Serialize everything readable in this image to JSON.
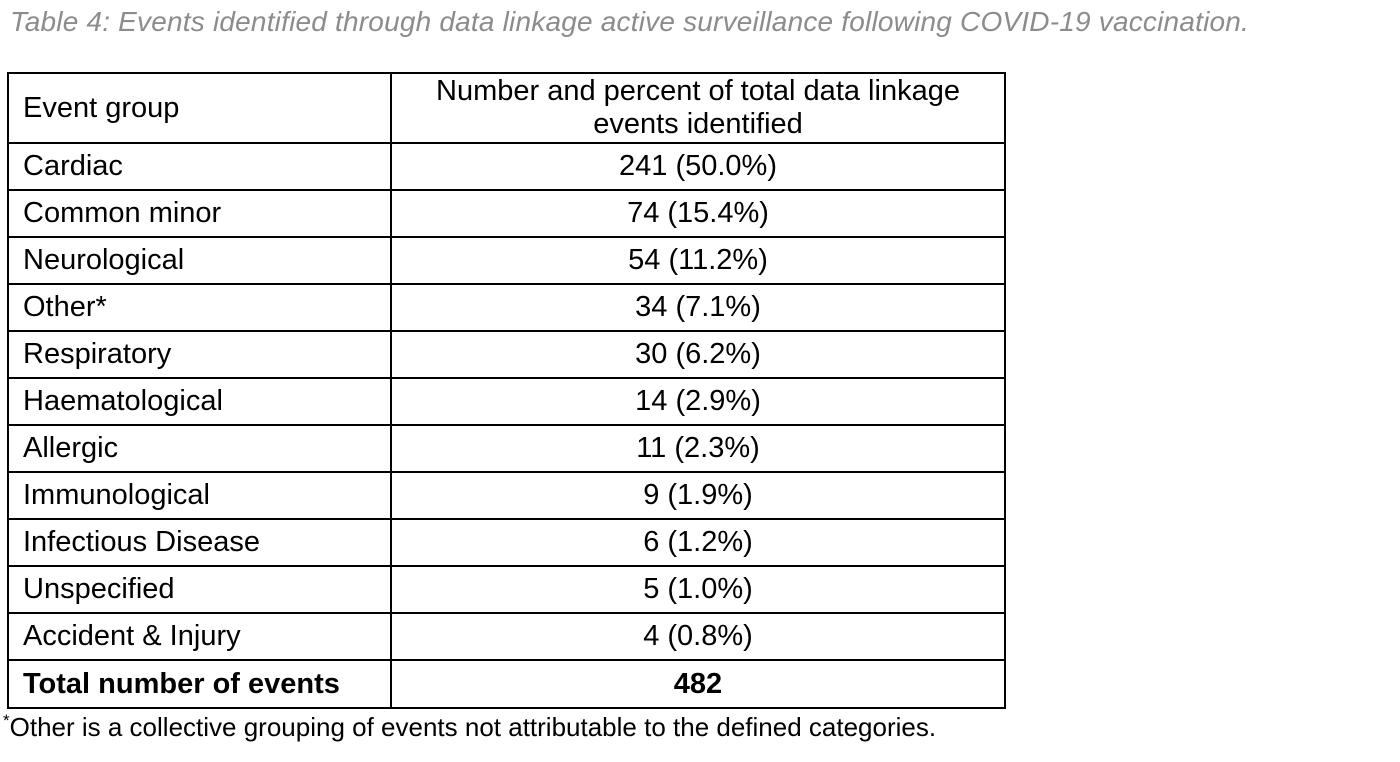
{
  "page": {
    "title": "Table 4: Events identified through data linkage active surveillance following COVID-19 vaccination."
  },
  "table": {
    "col_headers": {
      "event_group": "Event group",
      "number_percent": "Number and percent of total data linkage events identified"
    },
    "rows": [
      {
        "group": "Cardiac",
        "value": "241 (50.0%)"
      },
      {
        "group": "Common minor",
        "value": "74 (15.4%)"
      },
      {
        "group": "Neurological",
        "value": "54 (11.2%)"
      },
      {
        "group": "Other*",
        "value": "34 (7.1%)"
      },
      {
        "group": "Respiratory",
        "value": "30 (6.2%)"
      },
      {
        "group": "Haematological",
        "value": "14 (2.9%)"
      },
      {
        "group": "Allergic",
        "value": "11 (2.3%)"
      },
      {
        "group": "Immunological",
        "value": "9 (1.9%)"
      },
      {
        "group": "Infectious Disease",
        "value": "6 (1.2%)"
      },
      {
        "group": "Unspecified",
        "value": "5 (1.0%)"
      },
      {
        "group": "Accident & Injury",
        "value": "4 (0.8%)"
      }
    ],
    "total_row": {
      "label": "Total number of events",
      "value": "482"
    }
  },
  "footnote": {
    "marker": "*",
    "text": "Other is a collective grouping of events not attributable to the defined categories."
  },
  "colors": {
    "title_gray": "#8c8c8c",
    "text": "#000000",
    "border": "#000000",
    "background": "#ffffff"
  },
  "chart_data": {
    "type": "table",
    "title": "Table 4: Events identified through data linkage active surveillance following COVID-19 vaccination.",
    "columns": [
      "Event group",
      "Number and percent of total data linkage events identified"
    ],
    "categories": [
      "Cardiac",
      "Common minor",
      "Neurological",
      "Other*",
      "Respiratory",
      "Haematological",
      "Allergic",
      "Immunological",
      "Infectious Disease",
      "Unspecified",
      "Accident & Injury"
    ],
    "counts": [
      241,
      74,
      54,
      34,
      30,
      14,
      11,
      9,
      6,
      5,
      4
    ],
    "percents": [
      50.0,
      15.4,
      11.2,
      7.1,
      6.2,
      2.9,
      2.3,
      1.9,
      1.2,
      1.0,
      0.8
    ],
    "total_events": 482,
    "footnote": "*Other is a collective grouping of events not attributable to the defined categories."
  }
}
